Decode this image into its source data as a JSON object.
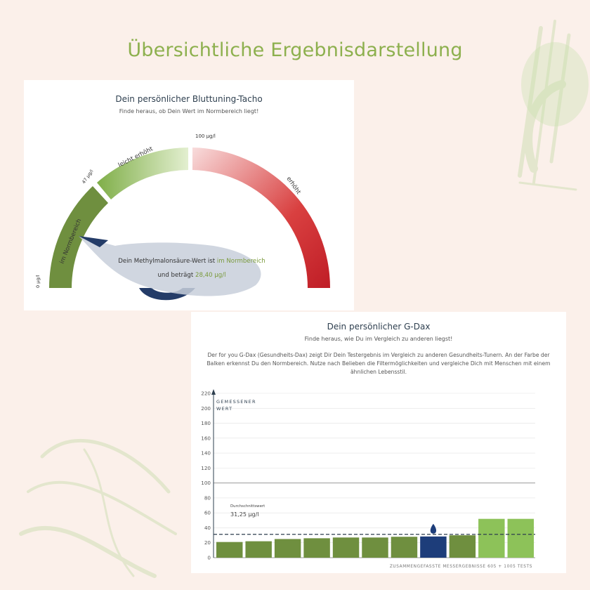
{
  "page": {
    "title": "Übersichtliche Ergebnisdarstellung"
  },
  "colors": {
    "title_green": "#8db04e",
    "normal_green": "#6f8f3f",
    "light_green": "#8dc259",
    "elevated_red": "#c8202b",
    "highlight_navy": "#1d3d7a"
  },
  "gauge": {
    "title": "Dein persönlicher Bluttuning-Tacho",
    "subtitle": "Finde heraus, ob Dein Wert im Normbereich liegt!",
    "segments": [
      {
        "label": "im Normbereich",
        "from": 0,
        "to": 47
      },
      {
        "label": "leicht erhöht",
        "from": 47,
        "to": 100
      },
      {
        "label": "erhöht",
        "from": 100,
        "to": 200
      }
    ],
    "tick_labels": [
      "0 µg/l",
      "47 µg/l",
      "100 µg/l"
    ],
    "value": 28.4,
    "bubble": {
      "line1_prefix": "Dein Methylmalonsäure-Wert ist ",
      "line1_highlight": "im Normbereich",
      "line2_prefix": "und beträgt ",
      "line2_highlight": "28,40 µg/l"
    }
  },
  "gdax": {
    "title": "Dein persönlicher G-Dax",
    "subtitle": "Finde heraus, wie Du im Vergleich zu anderen liegst!",
    "description": "Der for you G-Dax (Gesundheits-Dax) zeigt Dir Dein Testergebnis im Vergleich zu anderen Gesundheits-Tunern. An der Farbe der Balken erkennst Du den Normbereich. Nutze nach Belieben die Filtermöglichkeiten und vergleiche Dich mit Menschen mit einem ähnlichen Lebensstil."
  },
  "chart_data": {
    "type": "bar",
    "ylabel_line1": "GEMESSENER",
    "ylabel_line2": "WERT",
    "xlabel": "ZUSAMMENGEFASSTE MESSERGEBNISSE 605 + 1005 TESTS",
    "ylim": [
      0,
      220
    ],
    "yticks": [
      0,
      20,
      40,
      60,
      80,
      100,
      120,
      140,
      160,
      180,
      200,
      220
    ],
    "reference_line": 100,
    "average": {
      "label": "Durchschnittswert",
      "value_text": "31,25 µg/l",
      "value": 31.25
    },
    "values": [
      21,
      22,
      25,
      26,
      27,
      27,
      28,
      28.4,
      30,
      52,
      52
    ],
    "colors": [
      "#6f8f3f",
      "#6f8f3f",
      "#6f8f3f",
      "#6f8f3f",
      "#6f8f3f",
      "#6f8f3f",
      "#6f8f3f",
      "#1d3d7a",
      "#6f8f3f",
      "#8dc259",
      "#8dc259"
    ],
    "highlight_index": 7
  }
}
